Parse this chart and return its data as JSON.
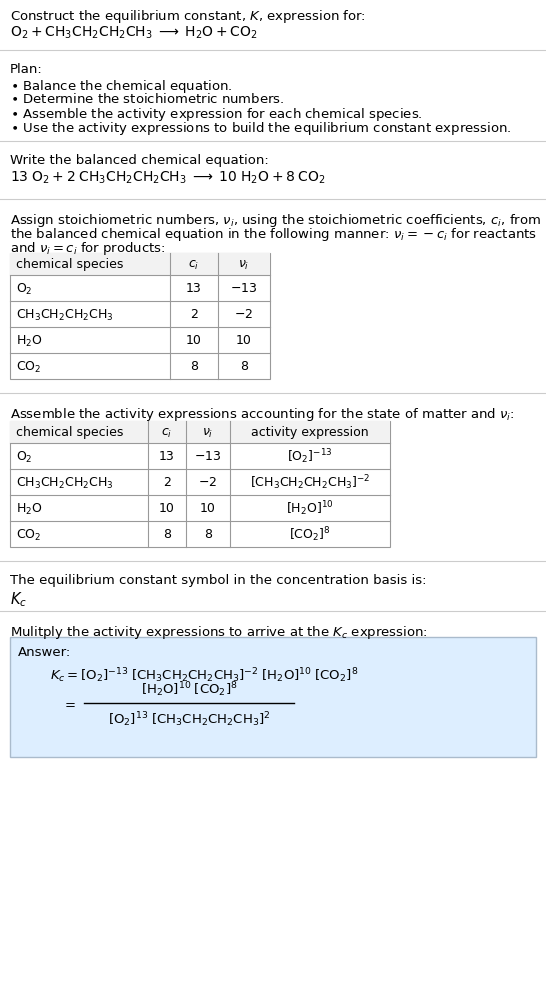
{
  "bg_color": "#ffffff",
  "text_color": "#000000",
  "table_border_color": "#999999",
  "answer_box_color": "#ddeeff",
  "answer_box_border": "#aabbcc",
  "font_size": 9.5,
  "small_font": 9.0,
  "sections": {
    "title": "Construct the equilibrium constant, $K$, expression for:",
    "rxn_unbal": "$\\mathrm{O_2 + CH_3CH_2CH_2CH_3 \\;\\longrightarrow\\; H_2O + CO_2}$",
    "plan_header": "Plan:",
    "plan_items": [
      "$\\bullet$ Balance the chemical equation.",
      "$\\bullet$ Determine the stoichiometric numbers.",
      "$\\bullet$ Assemble the activity expression for each chemical species.",
      "$\\bullet$ Use the activity expressions to build the equilibrium constant expression."
    ],
    "balanced_header": "Write the balanced chemical equation:",
    "rxn_bal": "$\\mathrm{13\\;O_2 + 2\\;CH_3CH_2CH_2CH_3 \\;\\longrightarrow\\; 10\\;H_2O + 8\\;CO_2}$",
    "stoich_text1": "Assign stoichiometric numbers, $\\nu_i$, using the stoichiometric coefficients, $c_i$, from",
    "stoich_text2": "the balanced chemical equation in the following manner: $\\nu_i = -c_i$ for reactants",
    "stoich_text3": "and $\\nu_i = c_i$ for products:",
    "table1_header": [
      "chemical species",
      "$c_i$",
      "$\\nu_i$"
    ],
    "table1_rows": [
      [
        "$\\mathrm{O_2}$",
        "13",
        "$-13$"
      ],
      [
        "$\\mathrm{CH_3CH_2CH_2CH_3}$",
        "2",
        "$-2$"
      ],
      [
        "$\\mathrm{H_2O}$",
        "10",
        "10"
      ],
      [
        "$\\mathrm{CO_2}$",
        "8",
        "8"
      ]
    ],
    "activity_header": "Assemble the activity expressions accounting for the state of matter and $\\nu_i$:",
    "table2_header": [
      "chemical species",
      "$c_i$",
      "$\\nu_i$",
      "activity expression"
    ],
    "table2_rows": [
      [
        "$\\mathrm{O_2}$",
        "13",
        "$-13$",
        "$[\\mathrm{O_2}]^{-13}$"
      ],
      [
        "$\\mathrm{CH_3CH_2CH_2CH_3}$",
        "2",
        "$-2$",
        "$[\\mathrm{CH_3CH_2CH_2CH_3}]^{-2}$"
      ],
      [
        "$\\mathrm{H_2O}$",
        "10",
        "10",
        "$[\\mathrm{H_2O}]^{10}$"
      ],
      [
        "$\\mathrm{CO_2}$",
        "8",
        "8",
        "$[\\mathrm{CO_2}]^{8}$"
      ]
    ],
    "kc_header": "The equilibrium constant symbol in the concentration basis is:",
    "kc_symbol": "$K_c$",
    "multiply_header": "Mulitply the activity expressions to arrive at the $K_c$ expression:",
    "ans_label": "Answer:",
    "ans_line1": "$K_c = [\\mathrm{O_2}]^{-13}\\;[\\mathrm{CH_3CH_2CH_2CH_3}]^{-2}\\;[\\mathrm{H_2O}]^{10}\\;[\\mathrm{CO_2}]^{8}$",
    "ans_eq": "$=$",
    "ans_num": "$[\\mathrm{H_2O}]^{10}\\;[\\mathrm{CO_2}]^{8}$",
    "ans_den": "$[\\mathrm{O_2}]^{13}\\;[\\mathrm{CH_3CH_2CH_2CH_3}]^{2}$"
  }
}
